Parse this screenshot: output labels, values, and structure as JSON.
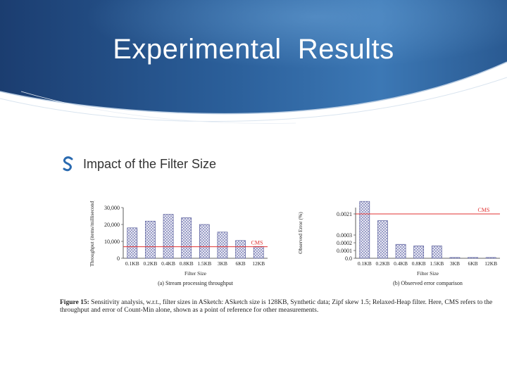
{
  "slide": {
    "title": "Experimental  Results",
    "bullet": "Impact of the Filter Size",
    "colors": {
      "header_dark": "#1b3f73",
      "header_mid": "#2d6aa8",
      "bullet_icon": "#2a6ab0"
    },
    "caption": {
      "label": "Figure 15:",
      "text": "Sensitivity analysis, w.r.t., filter sizes in ASketch: ASketch size is 128KB, Synthetic data; Zipf skew 1.5; Relaxed-Heap filter. Here, CMS refers to the throughput and error of Count-Min alone, shown as a point of reference for other measurements."
    }
  },
  "chart_data": [
    {
      "type": "bar",
      "subtitle": "(a) Stream processing throughput",
      "xlabel": "Filter Size",
      "ylabel": "Throughput (items/millisecond)",
      "categories": [
        "0.1KB",
        "0.2KB",
        "0.4KB",
        "0.8KB",
        "1.5KB",
        "3KB",
        "6KB",
        "12KB"
      ],
      "values": [
        18000,
        22000,
        26000,
        24000,
        20000,
        15500,
        10500,
        7000
      ],
      "yticks": [
        "0",
        "10,000",
        "20,000",
        "30,000"
      ],
      "ylim": [
        0,
        30000
      ],
      "reference_line": {
        "label": "CMS",
        "value": 6800,
        "color": "#e03030"
      },
      "bar_color": "#8b8fc0"
    },
    {
      "type": "bar",
      "subtitle": "(b) Observed error comparison",
      "xlabel": "Filter Size",
      "ylabel": "Observed Error (%)",
      "categories": [
        "0.1KB",
        "0.2KB",
        "0.4KB",
        "0.8KB",
        "1.5KB",
        "3KB",
        "6KB",
        "12KB"
      ],
      "values": [
        0.00065,
        0.00045,
        0.00018,
        0.00016,
        0.00016,
        1e-05,
        1e-05,
        1e-05
      ],
      "yticks": [
        "0.0",
        "0.0001",
        "0.0002",
        "0.0003",
        "0.0021"
      ],
      "reference_line": {
        "label": "CMS",
        "value": 0.0021,
        "color": "#e03030"
      },
      "bar_color": "#8b8fc0"
    }
  ]
}
